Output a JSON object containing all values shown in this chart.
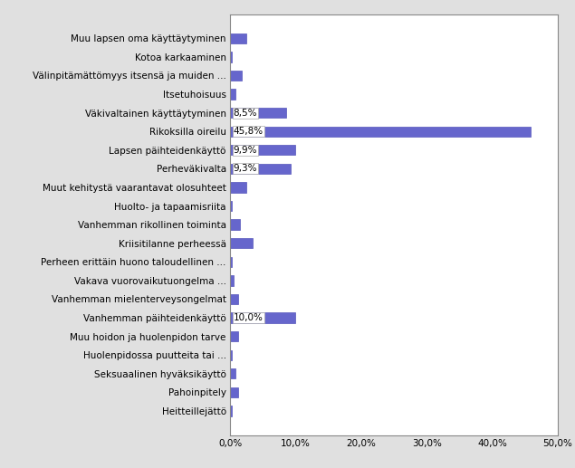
{
  "categories": [
    "Heitteillejättö",
    "Pahoinpitely",
    "Seksuaalinen hyväksikäyttö",
    "Huolenpidossa puutteita tai ...",
    "Muu hoidon ja huolenpidon tarve",
    "Vanhemman päihteidenkäyttö",
    "Vanhemman mielenterveysongelmat",
    "Vakava vuorovaikutuongelma ...",
    "Perheen erittäin huono taloudellinen ...",
    "Kriisitilanne perheessä",
    "Vanhemman rikollinen toiminta",
    "Huolto- ja tapaamisriita",
    "Muut kehitystä vaarantavat olosuhteet",
    "Perheväkivalta",
    "Lapsen päihteidenkäyttö",
    "Rikoksilla oireilu",
    "Väkivaltainen käyttäytyminen",
    "Itsetuhoisuus",
    "Välinpitämättömyys itsensä ja muiden ...",
    "Kotoa karkaaminen",
    "Muu lapsen oma käyttäytyminen"
  ],
  "values": [
    0.3,
    1.3,
    0.8,
    0.3,
    1.3,
    10.0,
    1.3,
    0.5,
    0.3,
    3.5,
    1.5,
    0.3,
    2.5,
    9.3,
    9.9,
    45.8,
    8.5,
    0.8,
    1.8,
    0.3,
    2.5
  ],
  "bar_color": "#6666cc",
  "bar_edge_color": "#5555bb",
  "plot_bg_color": "#ffffff",
  "fig_bg_color": "#e0e0e0",
  "label_fontsize": 7.5,
  "tick_fontsize": 7.5,
  "annotated": {
    "Rikoksilla oireilu": "45,8%",
    "Lapsen päihteidenkäyttö": "9,9%",
    "Perheväkivalta": "9,3%",
    "Väkivaltainen käyttäytyminen": "8,5%",
    "Vanhemman päihteidenkäyttö": "10,0%"
  },
  "xlim": [
    0,
    50
  ],
  "xticks": [
    0,
    10,
    20,
    30,
    40,
    50
  ],
  "xtick_labels": [
    "0,0%",
    "10,0%",
    "20,0%",
    "30,0%",
    "40,0%",
    "50,0%"
  ]
}
